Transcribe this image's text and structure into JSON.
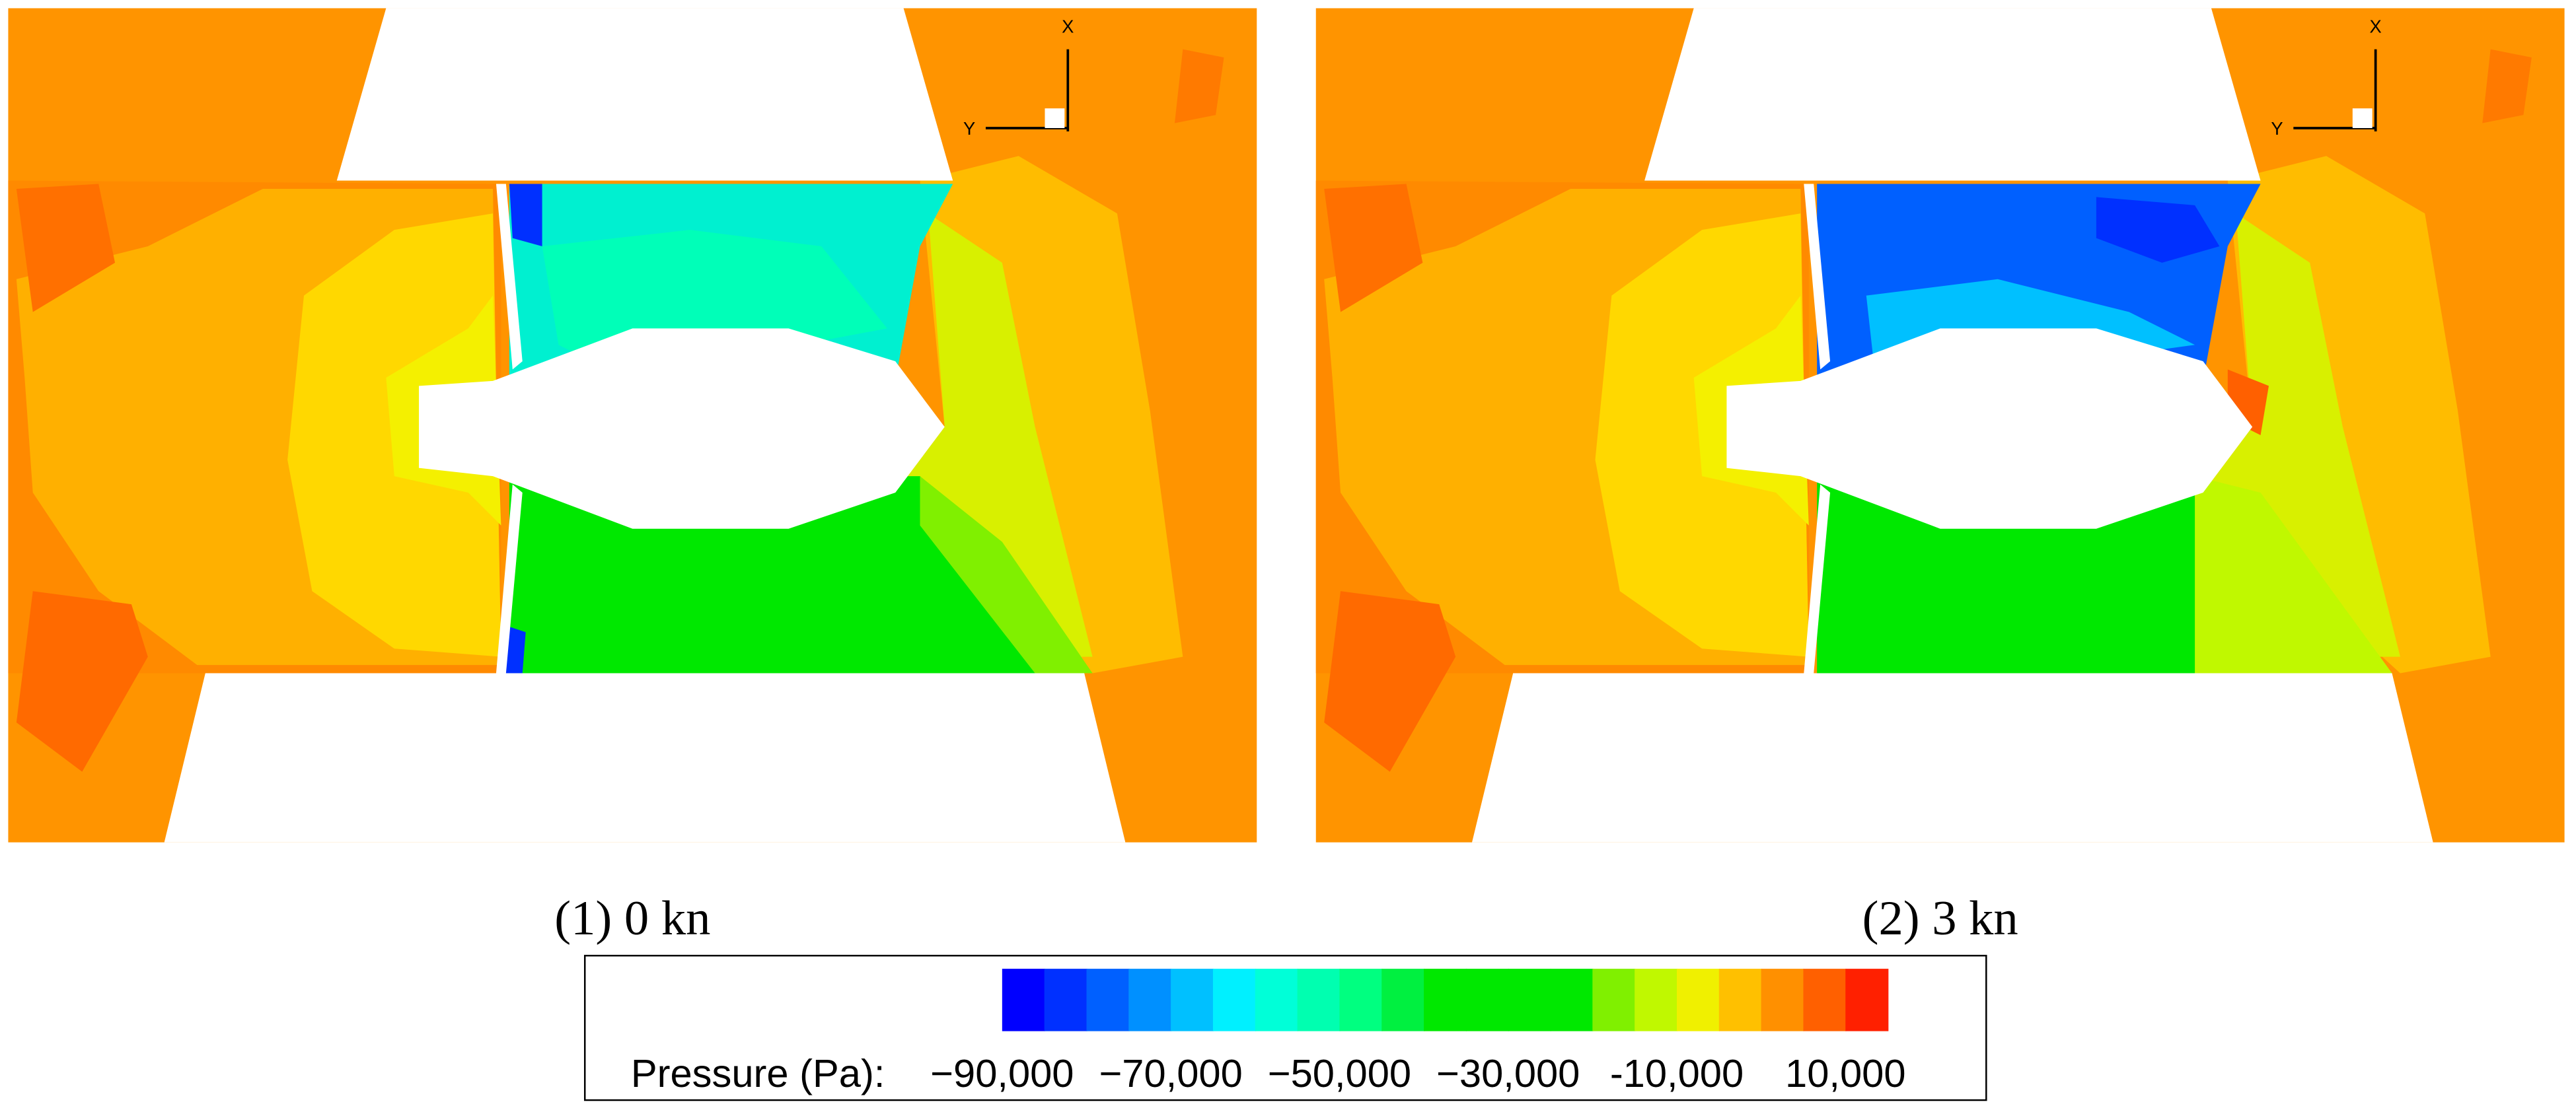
{
  "panels": [
    {
      "caption": "(1) 0 kn",
      "axis_x": "X",
      "axis_y": "Y"
    },
    {
      "caption": "(2) 3 kn",
      "axis_x": "X",
      "axis_y": "Y"
    }
  ],
  "colorbar": {
    "label": "Pressure (Pa):",
    "clim": [
      -90000,
      15000
    ],
    "colors": [
      "#0000ff",
      "#0030ff",
      "#0060ff",
      "#0090ff",
      "#00c0ff",
      "#00f0ff",
      "#00ffd8",
      "#00ffb0",
      "#00ff80",
      "#00f040",
      "#00e800",
      "#00e800",
      "#00e800",
      "#00e800",
      "#80f000",
      "#c0f800",
      "#f0f000",
      "#ffc000",
      "#ff9000",
      "#ff6000",
      "#ff2000"
    ],
    "ticks": [
      {
        "value": -90000,
        "label": "−90,000"
      },
      {
        "value": -70000,
        "label": "−70,000"
      },
      {
        "value": -50000,
        "label": "−50,000"
      },
      {
        "value": -30000,
        "label": "−30,000"
      },
      {
        "value": -10000,
        "label": "-10,000"
      },
      {
        "value": 10000,
        "label": "10,000"
      }
    ]
  }
}
